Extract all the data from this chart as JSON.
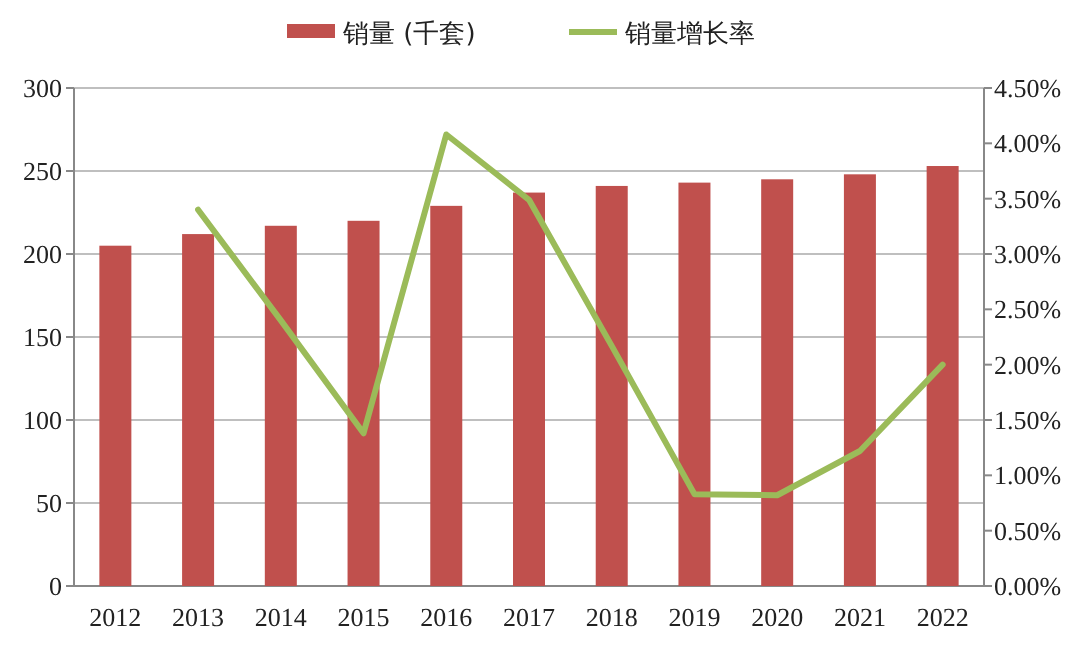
{
  "chart_data": {
    "type": "bar",
    "categories": [
      "2012",
      "2013",
      "2014",
      "2015",
      "2016",
      "2017",
      "2018",
      "2019",
      "2020",
      "2021",
      "2022"
    ],
    "series": [
      {
        "name": "销量 (千套)",
        "color": "#c0504d",
        "values": [
          205,
          212,
          217,
          220,
          229,
          237,
          241,
          243,
          245,
          248,
          253
        ]
      },
      {
        "name": "销量增长率",
        "type": "line",
        "axis": "y2",
        "color": "#9bbb59",
        "values": [
          null,
          3.4,
          2.4,
          1.38,
          4.08,
          3.49,
          2.17,
          0.83,
          0.82,
          1.22,
          2.0
        ]
      }
    ],
    "ylim": [
      0,
      300
    ],
    "yticks": [
      0,
      50,
      100,
      150,
      200,
      250,
      300
    ],
    "y2lim": [
      0,
      4.5
    ],
    "y2ticks": [
      {
        "value": 0,
        "label": "0.00%"
      },
      {
        "value": 0.5,
        "label": "0.50%"
      },
      {
        "value": 1,
        "label": "1.00%"
      },
      {
        "value": 1.5,
        "label": "1.50%"
      },
      {
        "value": 2,
        "label": "2.00%"
      },
      {
        "value": 2.5,
        "label": "2.50%"
      },
      {
        "value": 3,
        "label": "3.00%"
      },
      {
        "value": 3.5,
        "label": "3.50%"
      },
      {
        "value": 4,
        "label": "4.00%"
      },
      {
        "value": 4.5,
        "label": "4.50%"
      }
    ],
    "grid": "y",
    "legend": "top"
  }
}
